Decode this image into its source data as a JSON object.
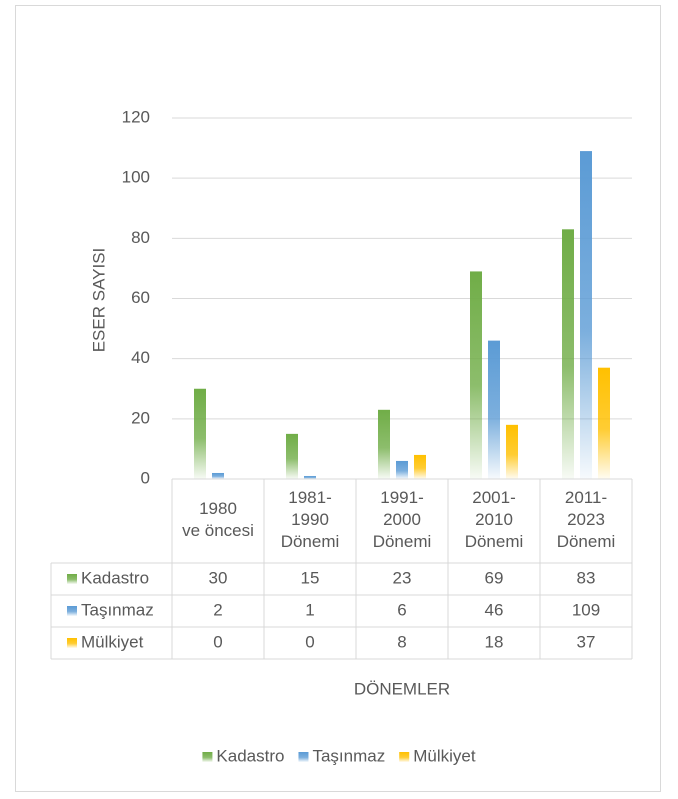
{
  "chart_data": {
    "type": "bar",
    "categories": [
      "1980 ve öncesi",
      "1981-1990 Dönemi",
      "1991-2000 Dönemi",
      "2001-2010 Dönemi",
      "2011-2023 Dönemi"
    ],
    "series": [
      {
        "name": "Kadastro",
        "color": "#70ad47",
        "values": [
          30,
          15,
          23,
          69,
          83
        ]
      },
      {
        "name": "Taşınmaz",
        "color": "#5b9bd5",
        "values": [
          2,
          1,
          6,
          46,
          109
        ]
      },
      {
        "name": "Mülkiyet",
        "color": "#ffc000",
        "values": [
          0,
          0,
          8,
          18,
          37
        ]
      }
    ],
    "y_label": "ESER SAYISI",
    "x_label": "DÖNEMLER",
    "ylim": [
      0,
      120
    ],
    "yticks": [
      0,
      20,
      40,
      60,
      80,
      100,
      120
    ],
    "grid": true,
    "legend": "bottom"
  }
}
